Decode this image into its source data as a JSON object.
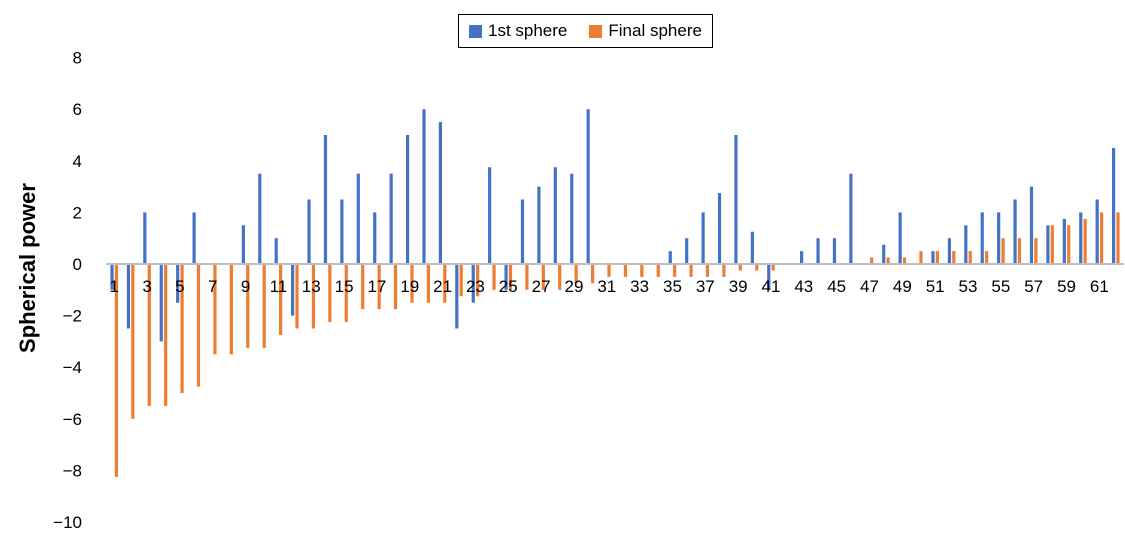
{
  "chart_data": {
    "type": "bar",
    "title": "",
    "xlabel": "",
    "ylabel": "Spherical power",
    "ylim": [
      -10,
      8
    ],
    "yticks": [
      8,
      6,
      4,
      2,
      0,
      -2,
      -4,
      -6,
      -8,
      -10
    ],
    "ytick_labels": [
      "8",
      "6",
      "4",
      "2",
      "0",
      "−2",
      "−4",
      "−6",
      "−8",
      "−10"
    ],
    "grid": false,
    "legend_position": "top-center",
    "categories": [
      1,
      2,
      3,
      4,
      5,
      6,
      7,
      8,
      9,
      10,
      11,
      12,
      13,
      14,
      15,
      16,
      17,
      18,
      19,
      20,
      21,
      22,
      23,
      24,
      25,
      26,
      27,
      28,
      29,
      30,
      31,
      32,
      33,
      34,
      35,
      36,
      37,
      38,
      39,
      40,
      41,
      42,
      43,
      44,
      45,
      46,
      47,
      48,
      49,
      50,
      51,
      52,
      53,
      54,
      55,
      56,
      57,
      58,
      59,
      60,
      61,
      62
    ],
    "x_tick_labels": [
      "1",
      "3",
      "5",
      "7",
      "9",
      "11",
      "13",
      "15",
      "17",
      "19",
      "21",
      "23",
      "25",
      "27",
      "29",
      "31",
      "33",
      "35",
      "37",
      "39",
      "41",
      "43",
      "45",
      "47",
      "49",
      "51",
      "53",
      "55",
      "57",
      "59",
      "61"
    ],
    "series": [
      {
        "name": "1st sphere",
        "color": "#4472C4",
        "values": [
          -1,
          -2.5,
          2,
          -3,
          -1.5,
          2,
          0,
          0,
          1.5,
          3.5,
          1,
          -2,
          2.5,
          5,
          2.5,
          3.5,
          2,
          3.5,
          5,
          6,
          5.5,
          -2.5,
          -1.5,
          3.75,
          -1,
          2.5,
          3,
          3.75,
          3.5,
          6,
          0,
          0,
          0,
          0,
          0.5,
          1,
          2,
          2.75,
          5,
          1.25,
          -1,
          0,
          0.5,
          1,
          1,
          3.5,
          0,
          0.75,
          2,
          0,
          0.5,
          1,
          1.5,
          2,
          2,
          2.5,
          3,
          1.5,
          1.75,
          2,
          2.5,
          4.5
        ]
      },
      {
        "name": "Final sphere",
        "color": "#ED7D31",
        "values": [
          -8.25,
          -6,
          -5.5,
          -5.5,
          -5,
          -4.75,
          -3.5,
          -3.5,
          -3.25,
          -3.25,
          -2.75,
          -2.5,
          -2.5,
          -2.25,
          -2.25,
          -1.75,
          -1.75,
          -1.75,
          -1.5,
          -1.5,
          -1.5,
          -1.25,
          -1.25,
          -1,
          -1,
          -1,
          -1,
          -1,
          -0.75,
          -0.75,
          -0.5,
          -0.5,
          -0.5,
          -0.5,
          -0.5,
          -0.5,
          -0.5,
          -0.5,
          -0.25,
          -0.25,
          -0.25,
          0,
          0,
          0,
          0,
          0,
          0.25,
          0.25,
          0.25,
          0.5,
          0.5,
          0.5,
          0.5,
          0.5,
          1,
          1,
          1,
          1.5,
          1.5,
          1.75,
          2,
          2
        ]
      }
    ]
  }
}
